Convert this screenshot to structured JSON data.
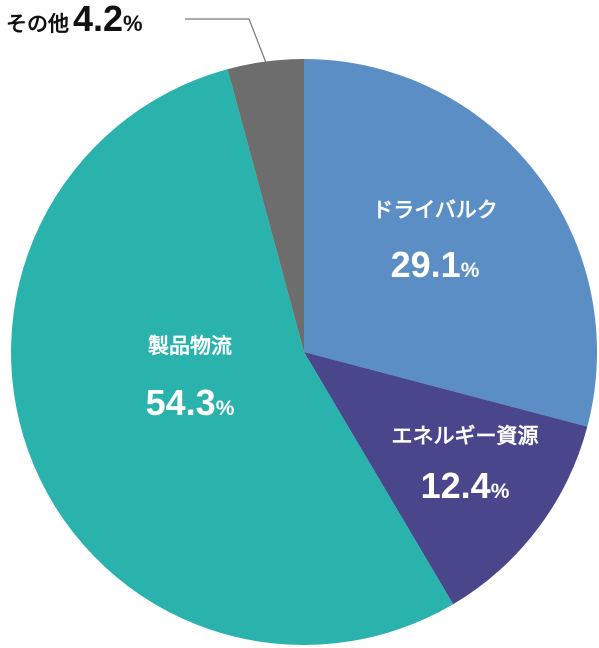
{
  "chart_data": {
    "type": "pie",
    "title": "",
    "unit": "%",
    "start_angle_deg": 0,
    "direction": "clockwise",
    "slices": [
      {
        "name": "ドライバルク",
        "value": 29.1,
        "value_label": "29.1",
        "color": "#5b8ec4",
        "label_color": "#ffffff"
      },
      {
        "name": "エネルギー資源",
        "value": 12.4,
        "value_label": "12.4",
        "color": "#4a468c",
        "label_color": "#ffffff"
      },
      {
        "name": "製品物流",
        "value": 54.3,
        "value_label": "54.3",
        "color": "#2ab2ad",
        "label_color": "#ffffff"
      },
      {
        "name": "その他",
        "value": 4.2,
        "value_label": "4.2",
        "color": "#6d6d6d",
        "label_color": "#111111",
        "external_label": true
      }
    ]
  }
}
